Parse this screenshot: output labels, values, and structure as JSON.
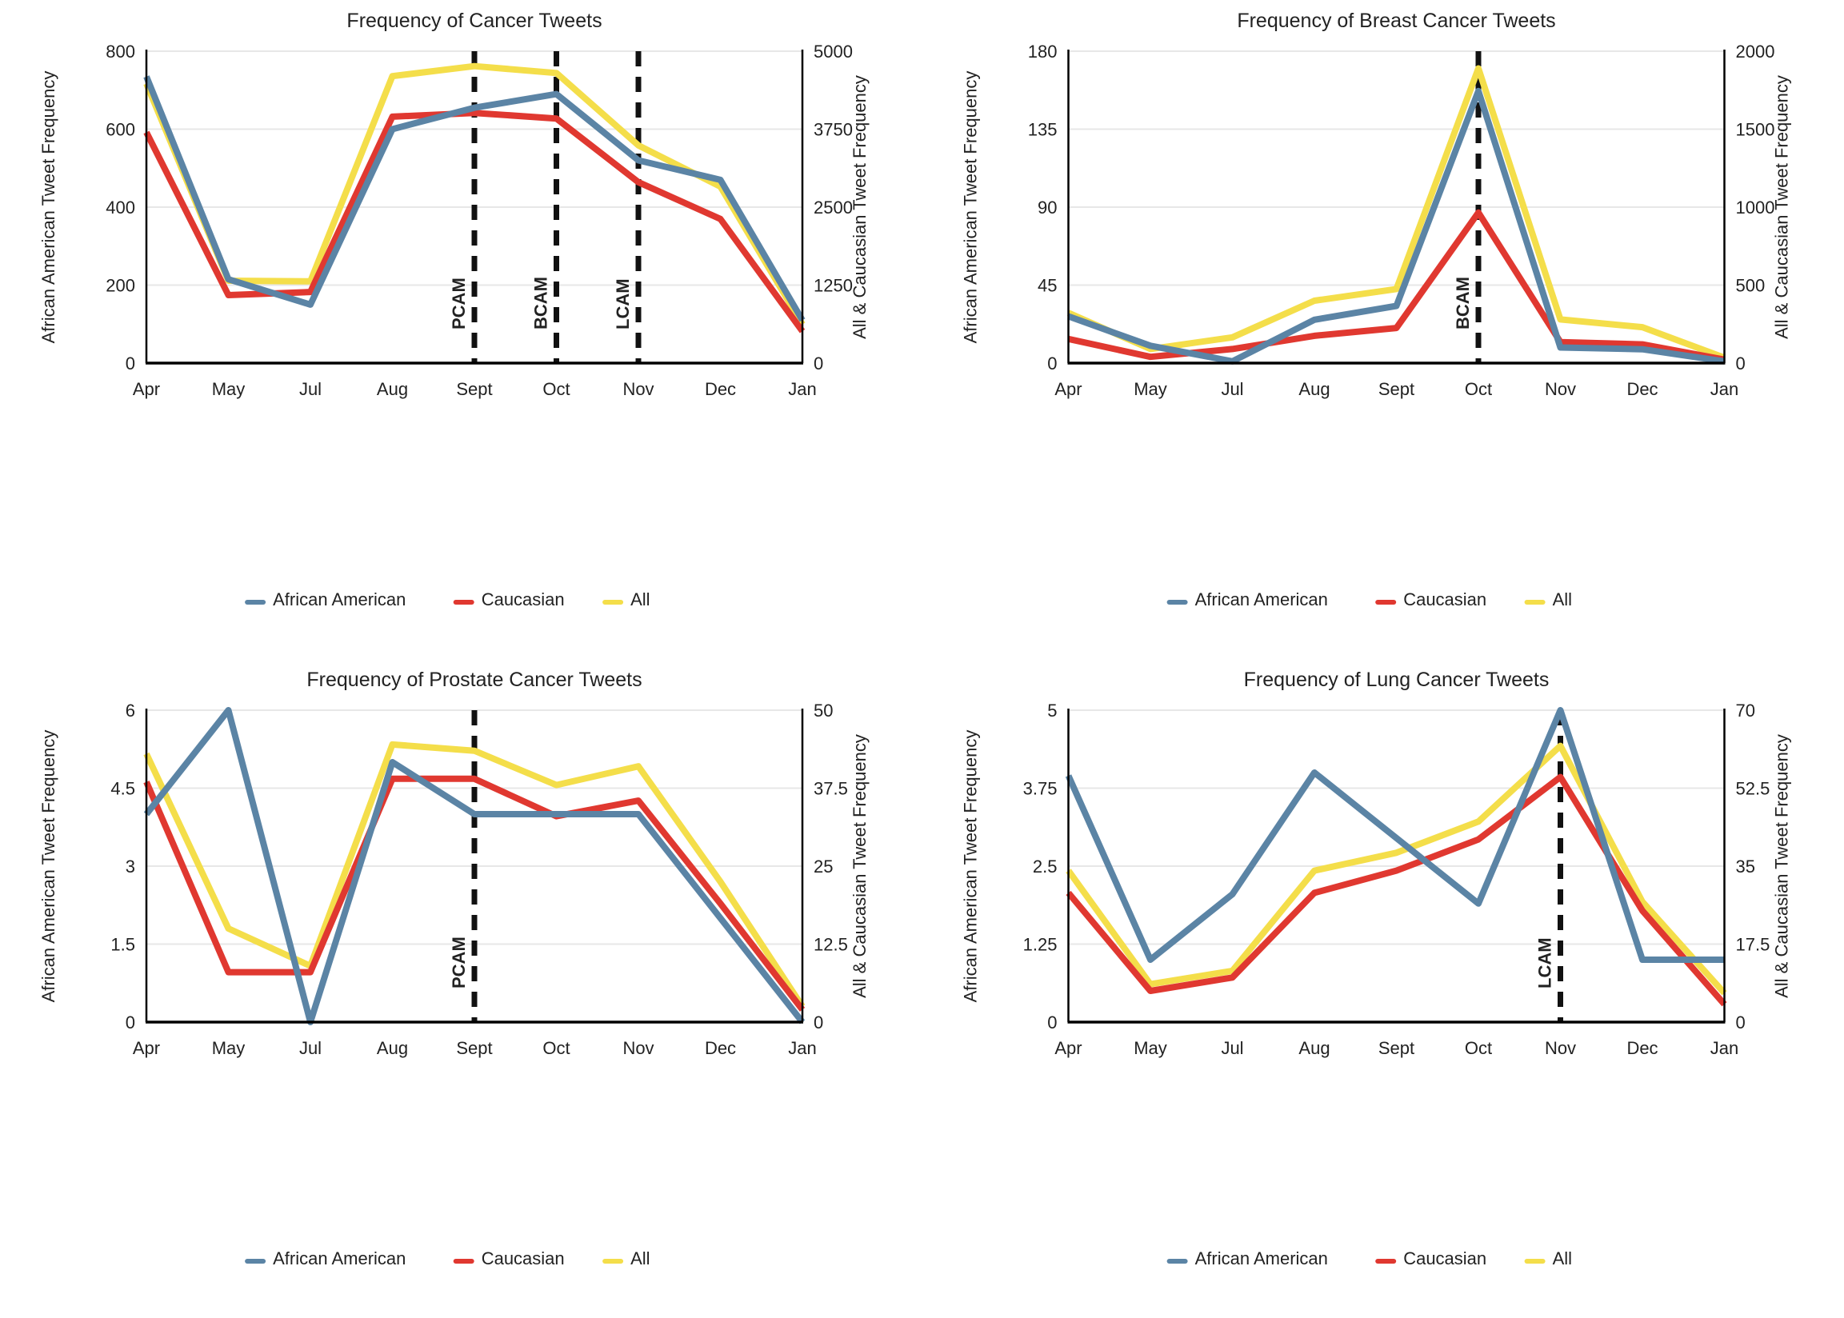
{
  "page": {
    "background": "#ffffff"
  },
  "colors": {
    "african_american": "#5B84A5",
    "caucasian": "#E03830",
    "all": "#F4DE4A",
    "annotation_line": "#111111",
    "gridline": "#E7E7E7",
    "axis_line": "#000000",
    "text": "#222222"
  },
  "legend": {
    "items": [
      {
        "label": "African American",
        "color": "#5B84A5"
      },
      {
        "label": "Caucasian",
        "color": "#E03830"
      },
      {
        "label": "All",
        "color": "#F4DE4A"
      }
    ]
  },
  "chart_data": [
    {
      "type": "line",
      "title": "Frequency of Cancer Tweets",
      "x_categories": [
        "Apr",
        "May",
        "Jul",
        "Aug",
        "Sept",
        "Oct",
        "Nov",
        "Dec",
        "Jan"
      ],
      "left_axis": {
        "title": "African American Tweet Frequency",
        "ticks": [
          0,
          200,
          400,
          600,
          800
        ],
        "max": 800
      },
      "right_axis": {
        "title": "All & Caucasian Tweet Frequency",
        "ticks": [
          0,
          1250,
          2500,
          3750,
          5000
        ],
        "max": 5000
      },
      "grid": true,
      "legend_position": "bottom",
      "series": [
        {
          "name": "African American",
          "axis": "left",
          "color": "#5B84A5",
          "values": [
            735,
            215,
            150,
            600,
            655,
            690,
            520,
            470,
            110
          ]
        },
        {
          "name": "Caucasian",
          "axis": "right",
          "color": "#E03830",
          "values": [
            3700,
            1090,
            1140,
            3950,
            4010,
            3920,
            2900,
            2310,
            510
          ]
        },
        {
          "name": "All",
          "axis": "right",
          "color": "#F4DE4A",
          "values": [
            4480,
            1320,
            1310,
            4600,
            4760,
            4650,
            3490,
            2830,
            620
          ]
        }
      ],
      "annotations": [
        {
          "label": "PCAM",
          "x_category": "Sept"
        },
        {
          "label": "BCAM",
          "x_category": "Oct"
        },
        {
          "label": "LCAM",
          "x_category": "Nov"
        }
      ]
    },
    {
      "type": "line",
      "title": "Frequency of Breast Cancer Tweets",
      "x_categories": [
        "Apr",
        "May",
        "Jul",
        "Aug",
        "Sept",
        "Oct",
        "Nov",
        "Dec",
        "Jan"
      ],
      "left_axis": {
        "title": "African American Tweet Frequency",
        "ticks": [
          0,
          45,
          90,
          135,
          180
        ],
        "max": 180
      },
      "right_axis": {
        "title": "All & Caucasian Tweet Frequency",
        "ticks": [
          0,
          500,
          1000,
          1500,
          2000
        ],
        "max": 2000
      },
      "grid": true,
      "legend_position": "bottom",
      "series": [
        {
          "name": "African American",
          "axis": "left",
          "color": "#5B84A5",
          "values": [
            27,
            10,
            1,
            25,
            33,
            157,
            9,
            8,
            1
          ]
        },
        {
          "name": "Caucasian",
          "axis": "right",
          "color": "#E03830",
          "values": [
            155,
            40,
            90,
            175,
            225,
            965,
            135,
            120,
            22
          ]
        },
        {
          "name": "All",
          "axis": "right",
          "color": "#F4DE4A",
          "values": [
            322,
            90,
            165,
            400,
            475,
            1890,
            280,
            230,
            35
          ]
        }
      ],
      "annotations": [
        {
          "label": "BCAM",
          "x_category": "Oct"
        }
      ]
    },
    {
      "type": "line",
      "title": "Frequency of Prostate Cancer Tweets",
      "x_categories": [
        "Apr",
        "May",
        "Jul",
        "Aug",
        "Sept",
        "Oct",
        "Nov",
        "Dec",
        "Jan"
      ],
      "left_axis": {
        "title": "African American Tweet Frequency",
        "ticks": [
          0,
          1.5,
          3,
          4.5,
          6
        ],
        "max": 6
      },
      "right_axis": {
        "title": "All & Caucasian Tweet Frequency",
        "ticks": [
          0,
          12.5,
          25,
          37.5,
          50
        ],
        "max": 50
      },
      "grid": true,
      "legend_position": "bottom",
      "series": [
        {
          "name": "African American",
          "axis": "left",
          "color": "#5B84A5",
          "values": [
            4.0,
            6.0,
            0,
            5.0,
            4.0,
            4.0,
            4.0,
            2.0,
            0
          ]
        },
        {
          "name": "Caucasian",
          "axis": "right",
          "color": "#E03830",
          "values": [
            38.5,
            8,
            8,
            39,
            39,
            33,
            35.5,
            19,
            2
          ]
        },
        {
          "name": "All",
          "axis": "right",
          "color": "#F4DE4A",
          "values": [
            43,
            15,
            9,
            44.5,
            43.5,
            38,
            41,
            22.5,
            2.5
          ]
        }
      ],
      "annotations": [
        {
          "label": "PCAM",
          "x_category": "Sept"
        }
      ]
    },
    {
      "type": "line",
      "title": "Frequency of Lung Cancer Tweets",
      "x_categories": [
        "Apr",
        "May",
        "Jul",
        "Aug",
        "Sept",
        "Oct",
        "Nov",
        "Dec",
        "Jan"
      ],
      "left_axis": {
        "title": "African American Tweet Frequency",
        "ticks": [
          0,
          1.25,
          2.5,
          3.75,
          5
        ],
        "max": 5
      },
      "right_axis": {
        "title": "All & Caucasian Tweet Frequency",
        "ticks": [
          0,
          17.5,
          35,
          52.5,
          70
        ],
        "max": 70
      },
      "grid": true,
      "legend_position": "bottom",
      "series": [
        {
          "name": "African American",
          "axis": "left",
          "color": "#5B84A5",
          "values": [
            3.95,
            1.0,
            2.05,
            4.0,
            2.95,
            1.9,
            5.0,
            1.0,
            1.0
          ]
        },
        {
          "name": "Caucasian",
          "axis": "right",
          "color": "#E03830",
          "values": [
            29,
            7,
            10,
            29,
            34,
            41,
            55,
            25,
            4
          ]
        },
        {
          "name": "All",
          "axis": "right",
          "color": "#F4DE4A",
          "values": [
            34,
            8.5,
            11.5,
            34,
            38,
            45,
            62,
            27,
            6.5
          ]
        }
      ],
      "annotations": [
        {
          "label": "LCAM",
          "x_category": "Nov"
        }
      ]
    }
  ]
}
